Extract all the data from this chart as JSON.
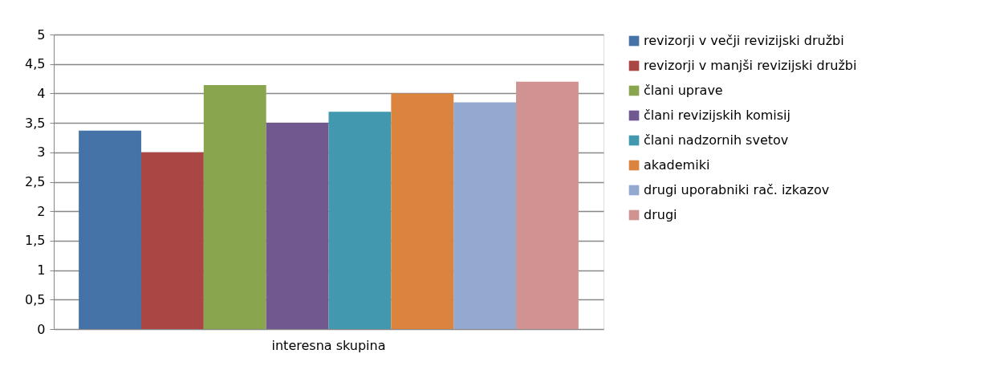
{
  "chart_data": {
    "type": "bar",
    "categories": [
      "interesna skupina"
    ],
    "series": [
      {
        "name": "revizorji v večji revizijski družbi",
        "color": "#4572a7",
        "values": [
          3.37
        ]
      },
      {
        "name": "revizorji v manjši revizijski družbi",
        "color": "#aa4643",
        "values": [
          3.0
        ]
      },
      {
        "name": "člani uprave",
        "color": "#89a54e",
        "values": [
          4.14
        ]
      },
      {
        "name": "člani revizijskih komisij",
        "color": "#71588f",
        "values": [
          3.5
        ]
      },
      {
        "name": "člani nadzornih svetov",
        "color": "#4198af",
        "values": [
          3.69
        ]
      },
      {
        "name": "akademiki",
        "color": "#db843d",
        "values": [
          4.0
        ]
      },
      {
        "name": "drugi uporabniki rač. izkazov",
        "color": "#93a9cf",
        "values": [
          3.85
        ]
      },
      {
        "name": "drugi",
        "color": "#d19392",
        "values": [
          4.2
        ]
      }
    ],
    "ylim": [
      0,
      5
    ],
    "yticks": [
      0,
      {
        "value": 0.5,
        "label": "0,5"
      },
      1,
      {
        "value": 1.5,
        "label": "1,5"
      },
      2,
      {
        "value": 2.5,
        "label": "2,5"
      },
      3,
      {
        "value": 3.5,
        "label": "3,5"
      },
      4,
      {
        "value": 4.5,
        "label": "4,5"
      },
      5
    ],
    "grid": "y",
    "legend": "right"
  }
}
